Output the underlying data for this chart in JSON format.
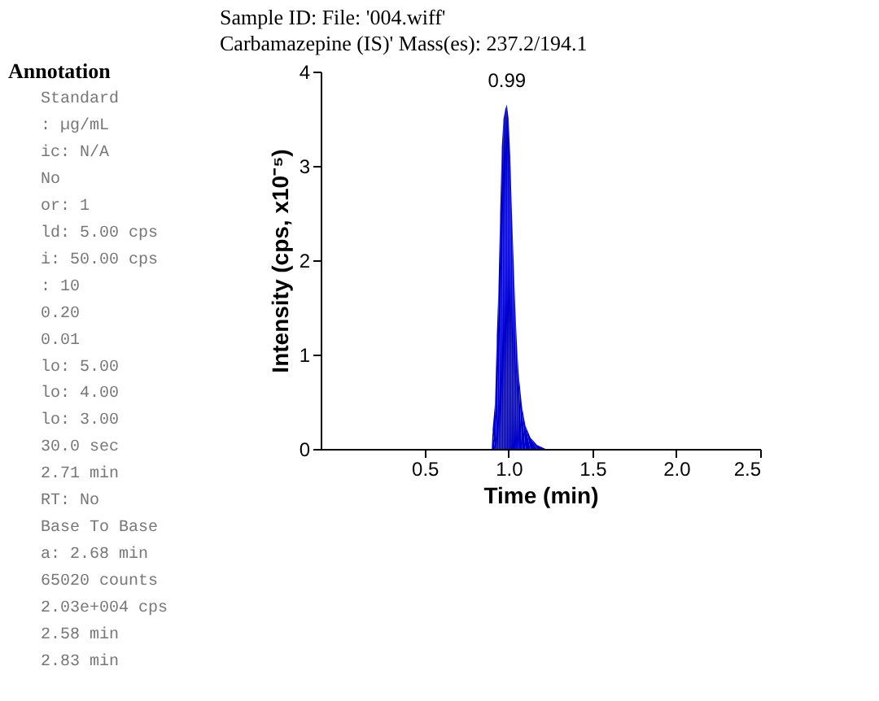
{
  "chart_data": {
    "type": "area",
    "title": "Sample ID: File: '004.wiff'",
    "subtitle": "Carbamazepine (IS)' Mass(es): 237.2/194.1",
    "xlabel": "Time (min)",
    "ylabel": "Intensity (cps, x10⁻⁵)",
    "x": [
      0.9,
      0.905,
      0.92,
      0.93,
      0.94,
      0.95,
      0.96,
      0.97,
      0.98,
      0.99,
      1.0,
      1.01,
      1.02,
      1.03,
      1.04,
      1.05,
      1.06,
      1.08,
      1.1,
      1.13,
      1.17,
      1.22
    ],
    "series": [
      {
        "color": "#0000cc",
        "values": [
          0,
          0.2,
          0.5,
          1.2,
          1.7,
          2.5,
          3.2,
          3.5,
          3.6,
          3.65,
          3.5,
          3.1,
          2.5,
          2.0,
          1.5,
          1.1,
          0.8,
          0.45,
          0.25,
          0.12,
          0.04,
          0
        ]
      }
    ],
    "xlim": [
      -0.12,
      2.5
    ],
    "ylim": [
      0,
      4
    ],
    "xticks": [
      0.5,
      {
        "value": 1,
        "label": "1.0"
      },
      1.5,
      {
        "value": 2,
        "label": "2.0"
      },
      2.5
    ],
    "yticks": [
      0,
      1,
      2,
      3,
      4
    ],
    "grid": false,
    "annotations": [
      {
        "text": "0.99",
        "x": 0.99,
        "y": 3.65
      },
      "Annotation",
      "Standard",
      ": µg/mL",
      "ic: N/A",
      "No",
      "or: 1",
      "ld: 5.00 cps",
      "i: 50.00 cps",
      ": 10",
      "0.20",
      "0.01",
      "lo: 5.00",
      "lo: 4.00",
      "lo: 3.00",
      "30.0 sec",
      "2.71 min",
      "RT: No",
      "Base To Base",
      "a: 2.68 min",
      "65020 counts",
      "2.03e+004 cps",
      "2.58 min",
      "2.83 min"
    ]
  }
}
